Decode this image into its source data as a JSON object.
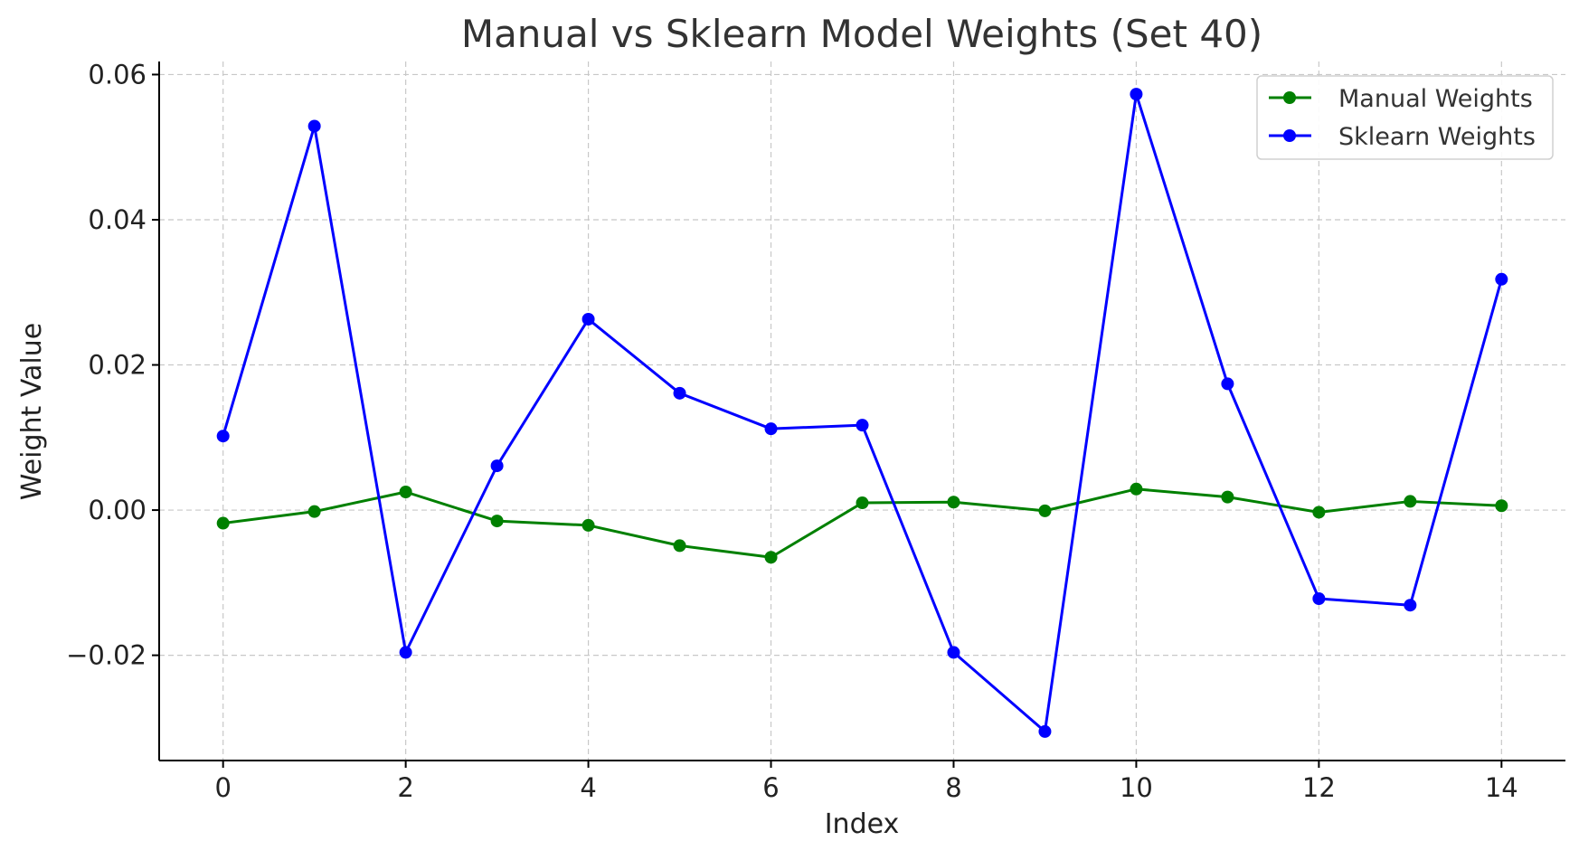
{
  "chart_data": {
    "type": "line",
    "title": "Manual vs Sklearn Model Weights (Set 40)",
    "xlabel": "Index",
    "ylabel": "Weight Value",
    "x": [
      0,
      1,
      2,
      3,
      4,
      5,
      6,
      7,
      8,
      9,
      10,
      11,
      12,
      13,
      14
    ],
    "xlim": [
      -0.7,
      14.7
    ],
    "ylim": [
      -0.0345,
      0.0618
    ],
    "x_ticks": [
      0,
      2,
      4,
      6,
      8,
      10,
      12,
      14
    ],
    "x_tick_labels": [
      "0",
      "2",
      "4",
      "6",
      "8",
      "10",
      "12",
      "14"
    ],
    "y_ticks": [
      -0.02,
      0.0,
      0.02,
      0.04,
      0.06
    ],
    "y_tick_labels": [
      "−0.02",
      "0.00",
      "0.02",
      "0.04",
      "0.06"
    ],
    "grid": true,
    "legend_position": "top-right",
    "series": [
      {
        "name": "Manual Weights",
        "color": "#008000",
        "values": [
          -0.0018,
          -0.0002,
          0.0025,
          -0.0015,
          -0.0021,
          -0.0049,
          -0.0065,
          0.001,
          0.0011,
          -0.0001,
          0.0029,
          0.0018,
          -0.0003,
          0.0012,
          0.0006
        ]
      },
      {
        "name": "Sklearn Weights",
        "color": "#0000ff",
        "values": [
          0.0102,
          0.0529,
          -0.0196,
          0.0061,
          0.0263,
          0.0161,
          0.0112,
          0.0117,
          -0.0196,
          -0.0305,
          0.0573,
          0.0174,
          -0.0122,
          -0.0131,
          0.0318
        ]
      }
    ]
  }
}
